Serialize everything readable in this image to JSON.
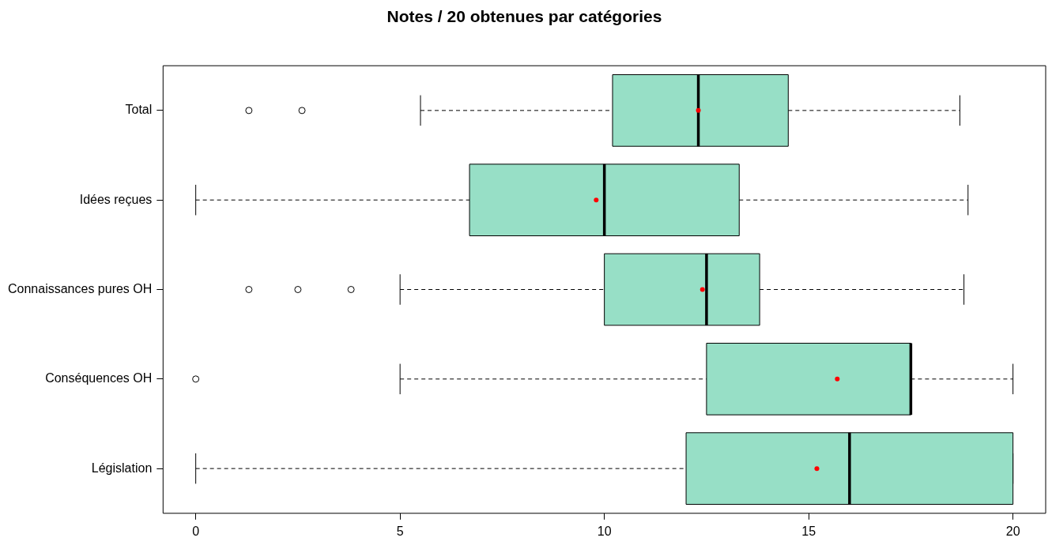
{
  "chart_data": {
    "type": "box",
    "title": "Notes / 20 obtenues par catégories",
    "orientation": "horizontal",
    "categories": [
      "Total",
      "Idées reçues",
      "Connaissances pures OH",
      "Conséquences OH",
      "Législation"
    ],
    "color": "#97dfc6",
    "xlim": [
      -0.8,
      20.8
    ],
    "xticks": [
      0,
      5,
      10,
      15,
      20
    ],
    "grid": false,
    "legend": false,
    "boxes": [
      {
        "low": 5.5,
        "q1": 10.2,
        "median": 12.3,
        "q3": 14.5,
        "high": 18.7,
        "mean": 12.3,
        "outliers": [
          1.3,
          2.6
        ]
      },
      {
        "low": 0,
        "q1": 6.7,
        "median": 10,
        "q3": 13.3,
        "high": 18.9,
        "mean": 9.8
      },
      {
        "low": 5,
        "q1": 10,
        "median": 12.5,
        "q3": 13.8,
        "high": 18.8,
        "mean": 12.4,
        "outliers": [
          1.3,
          2.5,
          3.8
        ]
      },
      {
        "low": 5,
        "q1": 12.5,
        "median": 17.5,
        "q3": 17.5,
        "high": 20,
        "mean": 15.7,
        "outliers": [
          0
        ]
      },
      {
        "low": 0,
        "q1": 12,
        "median": 16,
        "q3": 20,
        "high": 20,
        "mean": 15.2
      }
    ]
  }
}
